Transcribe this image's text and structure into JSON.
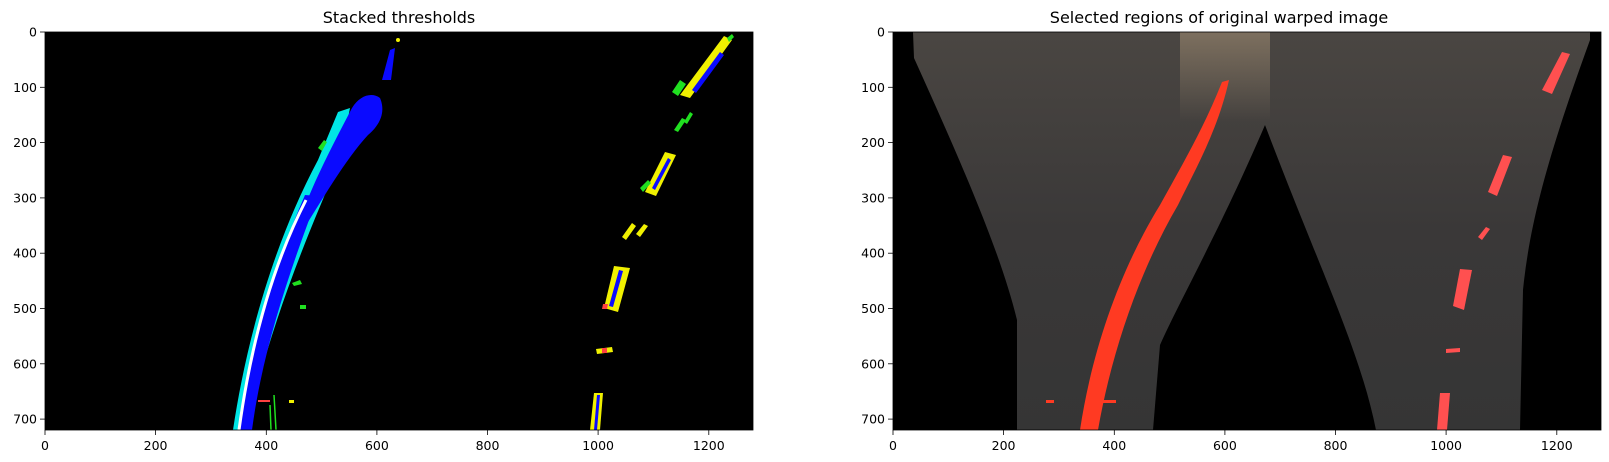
{
  "left_panel": {
    "title": "Stacked thresholds",
    "x_ticks": [
      "0",
      "200",
      "400",
      "600",
      "800",
      "1000",
      "1200"
    ],
    "y_ticks": [
      "0",
      "100",
      "200",
      "300",
      "400",
      "500",
      "600",
      "700"
    ]
  },
  "right_panel": {
    "title": "Selected regions of original warped image",
    "x_ticks": [
      "0",
      "200",
      "400",
      "600",
      "800",
      "1000",
      "1200"
    ],
    "y_ticks": [
      "0",
      "100",
      "200",
      "300",
      "400",
      "500",
      "600",
      "700"
    ]
  },
  "image_size": {
    "width": 1280,
    "height": 720
  },
  "colors": {
    "background": "#000000",
    "blue": "#0a0aff",
    "cyan": "#00e5e5",
    "green": "#20e020",
    "yellow": "#f0f000",
    "white": "#ffffff",
    "red_overlay": "#ff3a22",
    "road": "#3a3838"
  }
}
